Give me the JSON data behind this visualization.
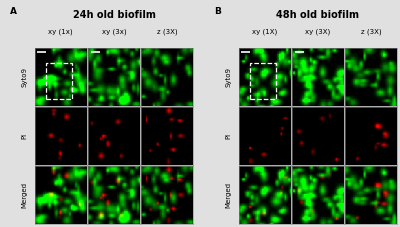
{
  "title_A": "24h old biofilm",
  "title_B": "48h old biofilm",
  "label_A": "A",
  "label_B": "B",
  "col_labels_A": [
    "xy (1x)",
    "xy (3x)",
    "z (3X)"
  ],
  "col_labels_B": [
    "xy (1X)",
    "xy (3X)",
    "z (3X)"
  ],
  "row_labels": [
    "Syto9",
    "PI",
    "Merged"
  ],
  "bg_color": "#e0e0e0",
  "seed": 42,
  "figsize": [
    4.0,
    2.27
  ],
  "dpi": 100
}
